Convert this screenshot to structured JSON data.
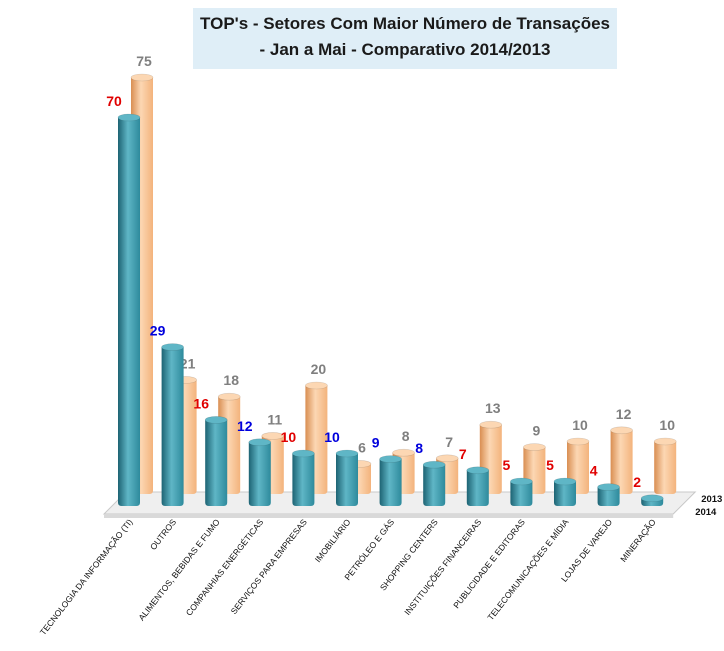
{
  "title": {
    "line1": "TOP's - Setores Com Maior Número de Transações",
    "line2": "- Jan a Mai - Comparativo 2014/2013"
  },
  "colors": {
    "series_2014": "#2e8a9c",
    "series_2014_dark": "#1d6373",
    "series_2014_light": "#5fb6c6",
    "series_2013": "#f3b37c",
    "series_2013_dark": "#d98e52",
    "series_2013_light": "#fcd7b3",
    "label_2013": "#7f7f7f",
    "label_red": "#e00000",
    "label_blue": "#0000dd"
  },
  "chart_data": {
    "type": "bar",
    "title": "TOP's - Setores Com Maior Número de Transações - Jan a Mai - Comparativo 2014/2013",
    "xlabel": "",
    "ylabel": "",
    "ylim": [
      0,
      75
    ],
    "grid": false,
    "legend": "bottom-right",
    "categories": [
      "TECNOLOGIA DA INFORMAÇÃO (TI)",
      "OUTROS",
      "ALIMENTOS, BEBIDAS E FUMO",
      "COMPANHIAS ENERGÉTICAS",
      "SERVIÇOS PARA EMPRESAS",
      "IMOBILIÁRIO",
      "PETRÓLEO E GÁS",
      "SHOPPING CENTERS",
      "INSTITUIÇÕES FINANCEIRAS",
      "PUBLICIDADE E EDITORAS",
      "TELECOMUNICAÇÕES E MÍDIA",
      "LOJAS DE VAREJO",
      "MINERAÇÃO"
    ],
    "series": [
      {
        "name": "2014",
        "values": [
          70,
          29,
          16,
          12,
          10,
          10,
          9,
          8,
          7,
          5,
          5,
          4,
          2
        ],
        "label_colors": [
          "red",
          "blue",
          "red",
          "blue",
          "red",
          "blue",
          "blue",
          "blue",
          "red",
          "red",
          "red",
          "red",
          "red"
        ]
      },
      {
        "name": "2013",
        "values": [
          75,
          21,
          18,
          11,
          20,
          6,
          8,
          7,
          13,
          9,
          10,
          12,
          10
        ]
      }
    ]
  }
}
